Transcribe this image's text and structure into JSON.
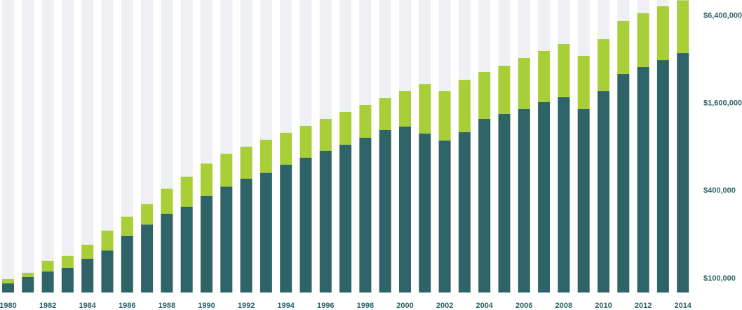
{
  "chart_data": {
    "type": "stacked_bar",
    "categories": [
      "1980",
      null,
      "1982",
      null,
      "1984",
      null,
      "1986",
      null,
      "1988",
      null,
      "1990",
      null,
      "1992",
      null,
      "1994",
      null,
      "1996",
      null,
      "1998",
      null,
      "2000",
      null,
      "2002",
      null,
      "2004",
      null,
      "2006",
      null,
      "2008",
      null,
      "2010",
      null,
      "2012",
      null,
      "2014"
    ],
    "series": [
      {
        "color": "#2e6368",
        "values": [
          92500,
          102200,
          111700,
          118100,
          136500,
          155700,
          196600,
          235000,
          277600,
          310300,
          370000,
          428000,
          483500,
          533600,
          603400,
          673800,
          752000,
          831000,
          928000,
          1048000,
          1108000,
          992000,
          888000,
          1014000,
          1248000,
          1350000,
          1459000,
          1629000,
          1761000,
          1459000,
          1941000,
          2536000,
          2832000,
          3162000,
          3532000
        ]
      },
      {
        "color": "#a8cf38",
        "values": [
          6400,
          7100,
          20200,
          24500,
          33800,
          57100,
          69000,
          89100,
          136100,
          188900,
          246400,
          291000,
          320000,
          363000,
          398000,
          444000,
          496000,
          563000,
          629000,
          690000,
          833000,
          1175000,
          1053000,
          1303000,
          1372000,
          1547000,
          1812000,
          2025000,
          2319000,
          1924000,
          2470000,
          3354000,
          3822000,
          4268000,
          4628000
        ]
      }
    ],
    "ylim": [
      80000,
      8200000
    ],
    "log_scale": true,
    "band_color": "#eef0f4",
    "yticks": [
      {
        "value": 100000,
        "label": "$100,000"
      },
      {
        "value": 400000,
        "label": "$400,000"
      },
      {
        "value": 1600000,
        "label": "$1,600,000"
      },
      {
        "value": 6400000,
        "label": "$6,400,000"
      }
    ]
  }
}
